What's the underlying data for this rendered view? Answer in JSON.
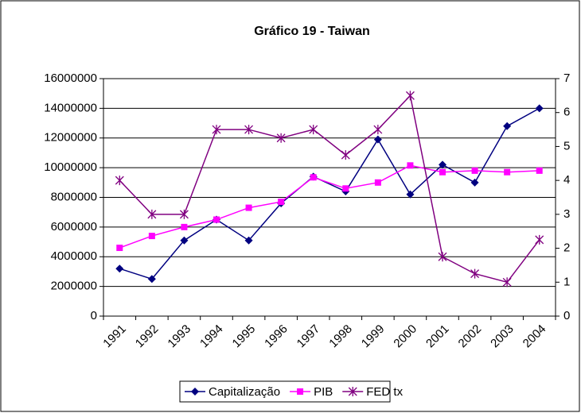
{
  "chart_data": {
    "type": "line",
    "title": "Gráfico 19 - Taiwan",
    "categories": [
      "1991",
      "1992",
      "1993",
      "1994",
      "1995",
      "1996",
      "1997",
      "1998",
      "1999",
      "2000",
      "2001",
      "2002",
      "2003",
      "2004"
    ],
    "series": [
      {
        "name": "Capitalização",
        "color": "#000080",
        "marker": "diamond",
        "values": [
          3200000,
          2500000,
          5100000,
          6500000,
          5100000,
          7600000,
          9400000,
          8400000,
          11900000,
          8200000,
          10200000,
          9000000,
          12800000,
          14000000
        ]
      },
      {
        "name": "PIB",
        "color": "#ff00ff",
        "marker": "square",
        "values": [
          4600000,
          5400000,
          6000000,
          6500000,
          7300000,
          7700000,
          9350000,
          8600000,
          9000000,
          10150000,
          9700000,
          9800000,
          9700000,
          9800000
        ]
      },
      {
        "name": "FED tx",
        "color": "#800080",
        "marker": "star",
        "axis": "y2",
        "values": [
          4,
          3,
          3,
          5.5,
          5.5,
          5.25,
          5.5,
          4.75,
          5.5,
          6.5,
          1.75,
          1.25,
          1,
          2.25
        ]
      }
    ],
    "ylim": [
      0,
      16000000
    ],
    "yticks": [
      0,
      2000000,
      4000000,
      6000000,
      8000000,
      10000000,
      12000000,
      14000000,
      16000000
    ],
    "y2lim": [
      0,
      7
    ],
    "y2ticks": [
      0,
      1,
      2,
      3,
      4,
      5,
      6,
      7
    ],
    "grid": true,
    "legend": "bottom"
  }
}
